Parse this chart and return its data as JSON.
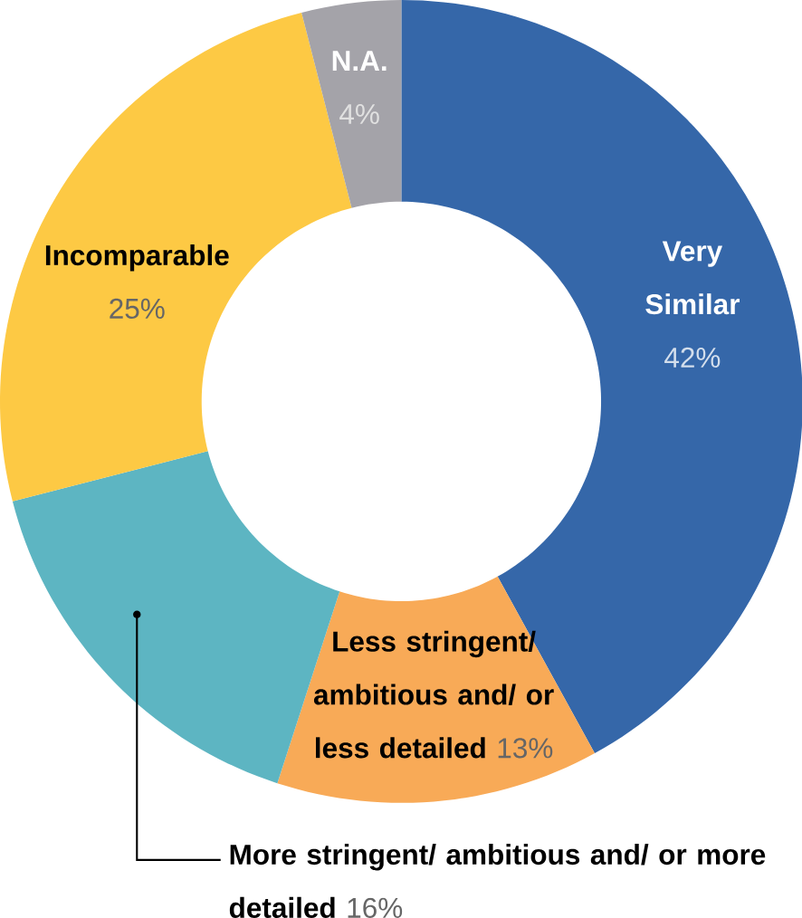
{
  "chart_data": {
    "type": "donut",
    "categories": [
      "Very Similar",
      "Less stringent/ ambitious and/ or less detailed",
      "More stringent/ ambitious and/ or more detailed",
      "Incomparable",
      "N.A."
    ],
    "values": [
      42,
      13,
      16,
      25,
      4
    ],
    "colors": [
      "#3567a9",
      "#f8aa57",
      "#5db5c2",
      "#fdc944",
      "#a4a3a9"
    ],
    "value_labels": [
      "42%",
      "13%",
      "16%",
      "25%",
      "4%"
    ]
  }
}
